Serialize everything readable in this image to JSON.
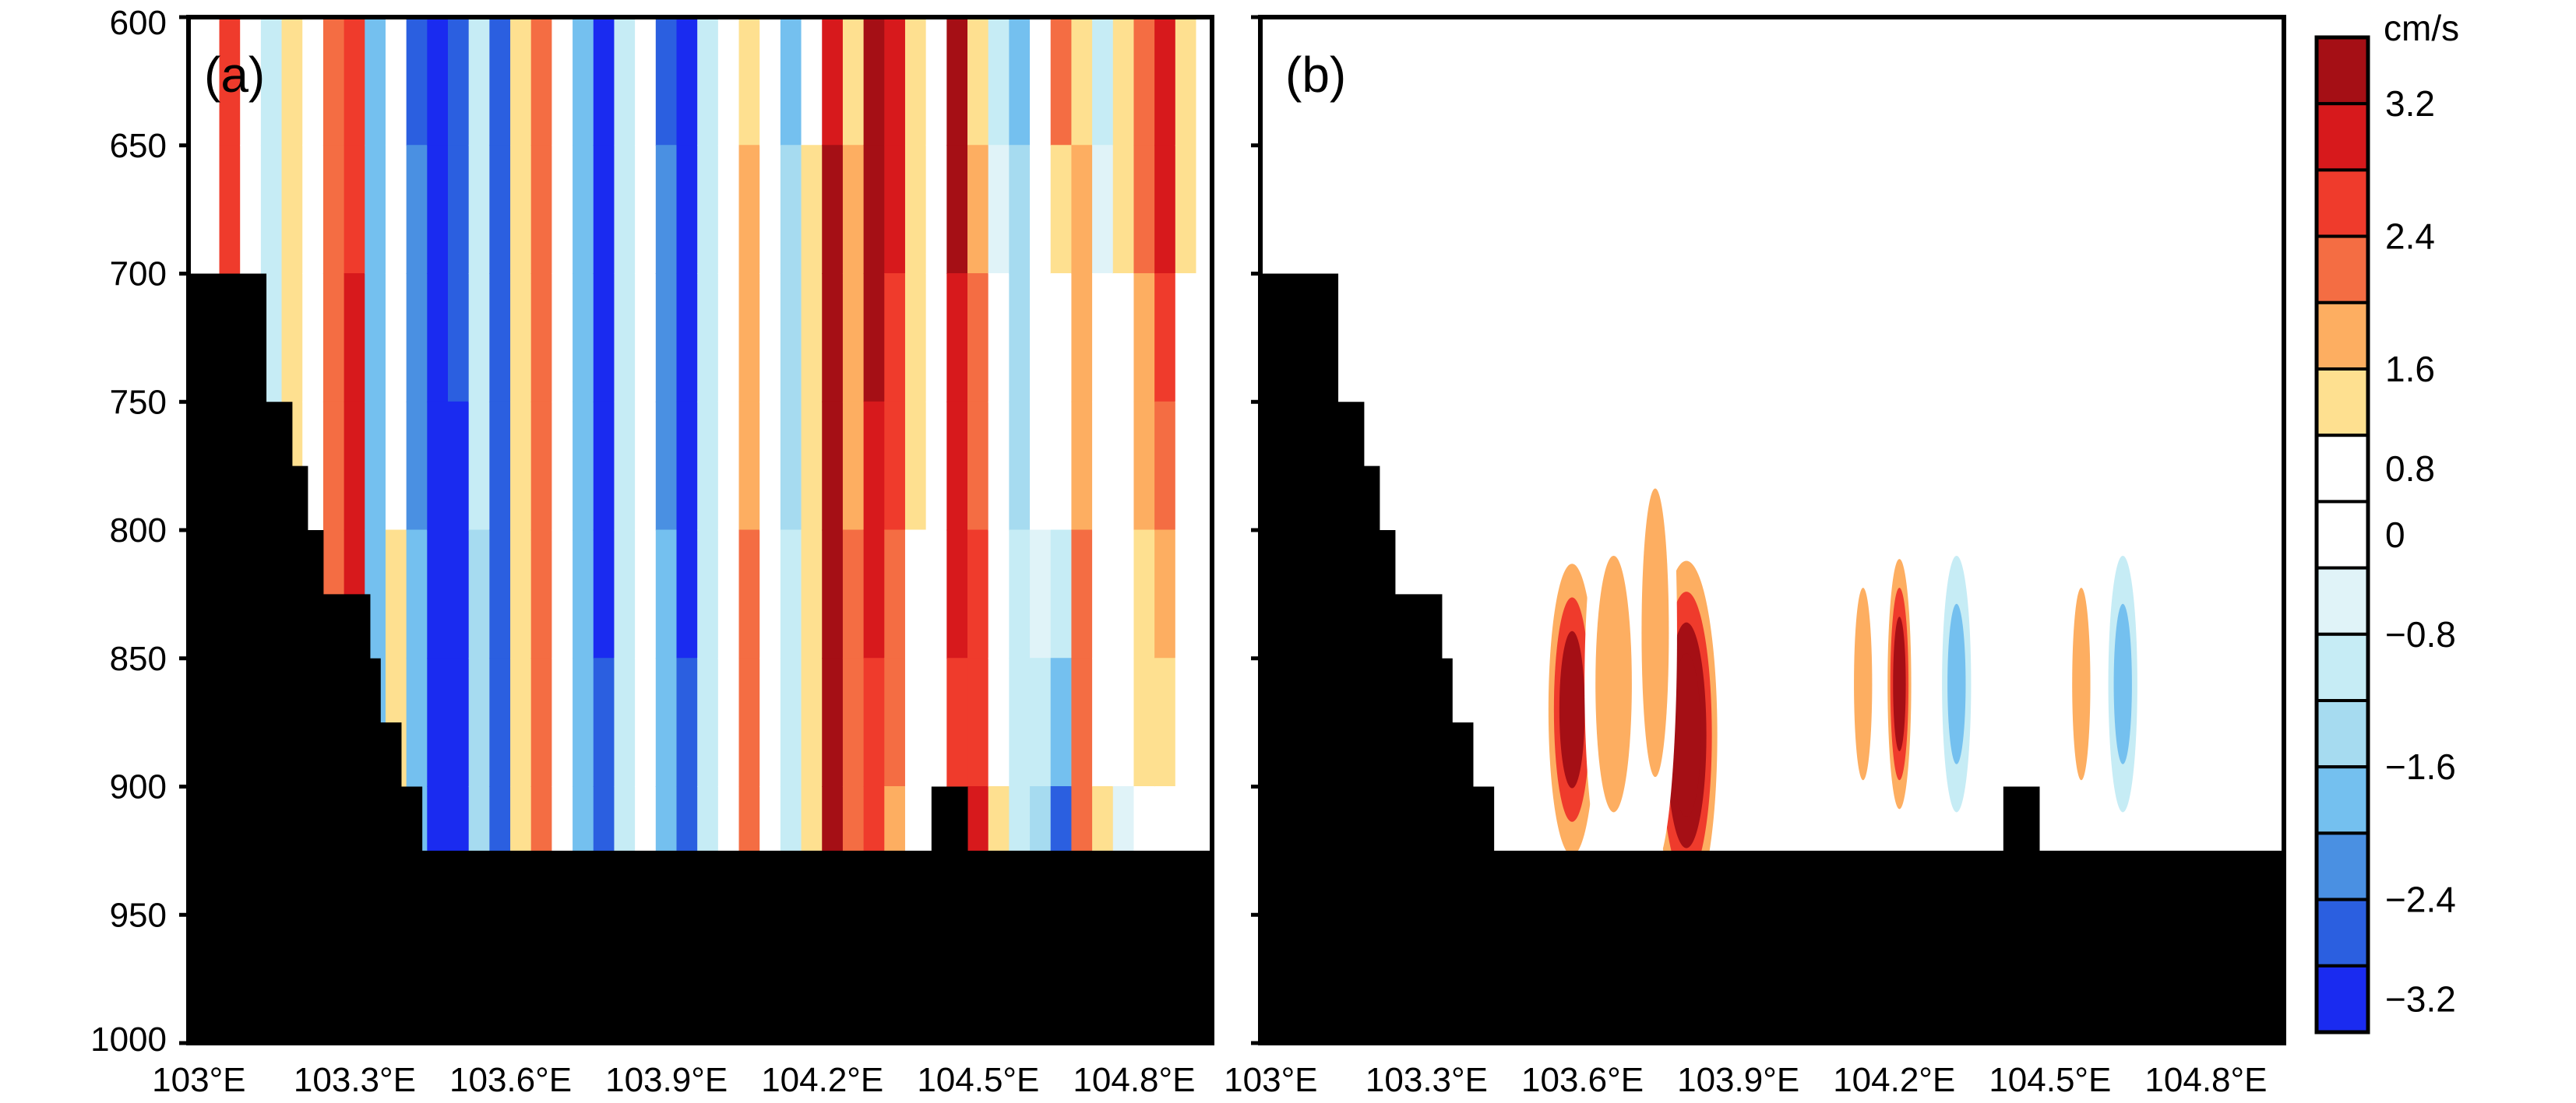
{
  "chart_data": [
    {
      "type": "heatmap",
      "panel_label": "(a)",
      "xlabel": "",
      "ylabel": "",
      "x_ticks": [
        "103°E",
        "103.3°E",
        "103.6°E",
        "103.9°E",
        "104.2°E",
        "104.5°E",
        "104.8°E"
      ],
      "x_tick_values": [
        103.0,
        103.3,
        103.6,
        103.9,
        104.2,
        104.5,
        104.8
      ],
      "y_ticks": [
        "600",
        "650",
        "700",
        "750",
        "800",
        "850",
        "900",
        "950",
        "1000"
      ],
      "y_tick_values": [
        600,
        650,
        700,
        750,
        800,
        850,
        900,
        950,
        1000
      ],
      "xlim": [
        102.98,
        104.95
      ],
      "ylim": [
        1000,
        600
      ],
      "y_reversed": true,
      "land_mask_color": "#000000",
      "field": {
        "description_units": "cm/s",
        "columns_lon": [
          103.02,
          103.06,
          103.1,
          103.14,
          103.18,
          103.22,
          103.26,
          103.3,
          103.34,
          103.38,
          103.42,
          103.46,
          103.5,
          103.54,
          103.58,
          103.62,
          103.66,
          103.7,
          103.74,
          103.78,
          103.82,
          103.86,
          103.9,
          103.94,
          103.98,
          104.02,
          104.06,
          104.1,
          104.14,
          104.18,
          104.22,
          104.26,
          104.3,
          104.34,
          104.38,
          104.42,
          104.46,
          104.5,
          104.54,
          104.58,
          104.62,
          104.66,
          104.7,
          104.74,
          104.78,
          104.82,
          104.86,
          104.9,
          104.94
        ],
        "column_values_top": [
          1.2,
          2.6,
          0.8,
          -0.8,
          1.6,
          0.8,
          2.4,
          2.6,
          -1.6,
          0.8,
          -2.4,
          -3.4,
          -2.4,
          -0.8,
          -2.6,
          1.6,
          2.4,
          0.8,
          -1.6,
          -3.4,
          -0.8,
          0.8,
          -2.4,
          -3.4,
          -0.8,
          0.8,
          1.6,
          0.8,
          -1.6,
          1.2,
          3.2,
          1.6,
          3.6,
          3.2,
          1.6,
          0.8,
          3.4,
          1.6,
          -0.8,
          -1.6,
          0.8,
          2.4,
          1.6,
          -0.8,
          1.6,
          2.4,
          3.2,
          1.6,
          0.8
        ],
        "column_values_bottom": [
          1.2,
          2.6,
          0.8,
          -0.8,
          1.6,
          0.8,
          2.4,
          3.4,
          -1.6,
          1.6,
          -1.6,
          -3.4,
          -3.6,
          -1.6,
          -2.4,
          1.6,
          2.4,
          0.8,
          -1.6,
          -2.4,
          -0.8,
          0.8,
          -1.6,
          -2.4,
          -0.8,
          0.8,
          2.4,
          0.8,
          -0.8,
          1.6,
          3.6,
          2.4,
          2.4,
          1.6,
          0.8,
          0.8,
          2.4,
          3.2,
          1.6,
          -0.8,
          -1.6,
          -3.6,
          2.4,
          1.6,
          -0.8,
          0.8,
          0.8,
          0.0,
          0.0
        ]
      },
      "land_profile": [
        {
          "lon": 102.98,
          "depth": 700
        },
        {
          "lon": 103.13,
          "depth": 700
        },
        {
          "lon": 103.13,
          "depth": 750
        },
        {
          "lon": 103.18,
          "depth": 750
        },
        {
          "lon": 103.18,
          "depth": 775
        },
        {
          "lon": 103.21,
          "depth": 775
        },
        {
          "lon": 103.21,
          "depth": 800
        },
        {
          "lon": 103.24,
          "depth": 800
        },
        {
          "lon": 103.24,
          "depth": 825
        },
        {
          "lon": 103.33,
          "depth": 825
        },
        {
          "lon": 103.33,
          "depth": 850
        },
        {
          "lon": 103.35,
          "depth": 850
        },
        {
          "lon": 103.35,
          "depth": 875
        },
        {
          "lon": 103.39,
          "depth": 875
        },
        {
          "lon": 103.39,
          "depth": 900
        },
        {
          "lon": 103.43,
          "depth": 900
        },
        {
          "lon": 103.43,
          "depth": 925
        },
        {
          "lon": 104.41,
          "depth": 925
        },
        {
          "lon": 104.41,
          "depth": 900
        },
        {
          "lon": 104.48,
          "depth": 900
        },
        {
          "lon": 104.48,
          "depth": 925
        },
        {
          "lon": 104.95,
          "depth": 925
        }
      ]
    },
    {
      "type": "heatmap",
      "panel_label": "(b)",
      "xlabel": "",
      "ylabel": "",
      "x_ticks": [
        "103°E",
        "103.3°E",
        "103.6°E",
        "103.9°E",
        "104.2°E",
        "104.5°E",
        "104.8°E"
      ],
      "x_tick_values": [
        103.0,
        103.3,
        103.6,
        103.9,
        104.2,
        104.5,
        104.8
      ],
      "xlim": [
        102.98,
        104.95
      ],
      "ylim": [
        1000,
        600
      ],
      "y_reversed": true,
      "land_mask_color": "#000000",
      "field": {
        "description_units": "cm/s",
        "blobs": [
          {
            "lon": 103.15,
            "depth": 620,
            "value": 0.8,
            "wlon": 0.03,
            "hdepth": 60
          },
          {
            "lon": 104.35,
            "depth": 615,
            "value": 0.8,
            "wlon": 0.01,
            "hdepth": 30
          },
          {
            "lon": 103.45,
            "depth": 840,
            "value": 0.8,
            "wlon": 0.03,
            "hdepth": 50
          },
          {
            "lon": 103.58,
            "depth": 870,
            "value": 3.4,
            "wlon": 0.04,
            "hdepth": 70
          },
          {
            "lon": 103.66,
            "depth": 860,
            "value": 1.6,
            "wlon": 0.04,
            "hdepth": 80
          },
          {
            "lon": 103.8,
            "depth": 880,
            "value": 3.6,
            "wlon": 0.05,
            "hdepth": 80
          },
          {
            "lon": 103.74,
            "depth": 840,
            "value": 1.6,
            "wlon": 0.03,
            "hdepth": 90
          },
          {
            "lon": 103.98,
            "depth": 870,
            "value": 0.8,
            "wlon": 0.03,
            "hdepth": 60
          },
          {
            "lon": 104.14,
            "depth": 860,
            "value": 1.6,
            "wlon": 0.02,
            "hdepth": 60
          },
          {
            "lon": 104.21,
            "depth": 860,
            "value": 3.2,
            "wlon": 0.02,
            "hdepth": 60
          },
          {
            "lon": 104.32,
            "depth": 860,
            "value": -1.6,
            "wlon": 0.02,
            "hdepth": 50
          },
          {
            "lon": 104.48,
            "depth": 850,
            "value": 0.8,
            "wlon": 0.03,
            "hdepth": 50
          },
          {
            "lon": 104.56,
            "depth": 860,
            "value": 1.6,
            "wlon": 0.02,
            "hdepth": 60
          },
          {
            "lon": 104.64,
            "depth": 860,
            "value": -1.6,
            "wlon": 0.02,
            "hdepth": 50
          },
          {
            "lon": 104.72,
            "depth": 860,
            "value": 0.8,
            "wlon": 0.03,
            "hdepth": 60
          }
        ]
      },
      "land_profile": [
        {
          "lon": 102.98,
          "depth": 700
        },
        {
          "lon": 103.13,
          "depth": 700
        },
        {
          "lon": 103.13,
          "depth": 750
        },
        {
          "lon": 103.18,
          "depth": 750
        },
        {
          "lon": 103.18,
          "depth": 775
        },
        {
          "lon": 103.21,
          "depth": 775
        },
        {
          "lon": 103.21,
          "depth": 800
        },
        {
          "lon": 103.24,
          "depth": 800
        },
        {
          "lon": 103.24,
          "depth": 825
        },
        {
          "lon": 103.33,
          "depth": 825
        },
        {
          "lon": 103.33,
          "depth": 850
        },
        {
          "lon": 103.35,
          "depth": 850
        },
        {
          "lon": 103.35,
          "depth": 875
        },
        {
          "lon": 103.39,
          "depth": 875
        },
        {
          "lon": 103.39,
          "depth": 900
        },
        {
          "lon": 103.43,
          "depth": 900
        },
        {
          "lon": 103.43,
          "depth": 925
        },
        {
          "lon": 104.41,
          "depth": 925
        },
        {
          "lon": 104.41,
          "depth": 900
        },
        {
          "lon": 104.48,
          "depth": 900
        },
        {
          "lon": 104.48,
          "depth": 925
        },
        {
          "lon": 104.95,
          "depth": 925
        }
      ]
    }
  ],
  "colorbar": {
    "unit": "cm/s",
    "labels": [
      "3.2",
      "2.4",
      "1.6",
      "0.8",
      "0",
      "−0.8",
      "−1.6",
      "−2.4",
      "−3.2"
    ],
    "label_values": [
      3.2,
      2.4,
      1.6,
      0.8,
      0,
      -0.8,
      -1.6,
      -2.4,
      -3.2
    ],
    "colors": [
      "#a50f15",
      "#d7191c",
      "#ef3b2c",
      "#f46d43",
      "#fdae61",
      "#fee090",
      "#ffffff",
      "#ffffff",
      "#e0f3f8",
      "#c6ecf5",
      "#a6dbf0",
      "#74c0ef",
      "#4a90e2",
      "#2b5fe0",
      "#1a2bf0"
    ],
    "bounds": [
      3.6,
      3.2,
      2.8,
      2.4,
      2.0,
      1.6,
      1.2,
      0.4,
      -0.4,
      -0.8,
      -1.2,
      -1.6,
      -2.0,
      -2.4,
      -2.8,
      -3.6
    ]
  }
}
